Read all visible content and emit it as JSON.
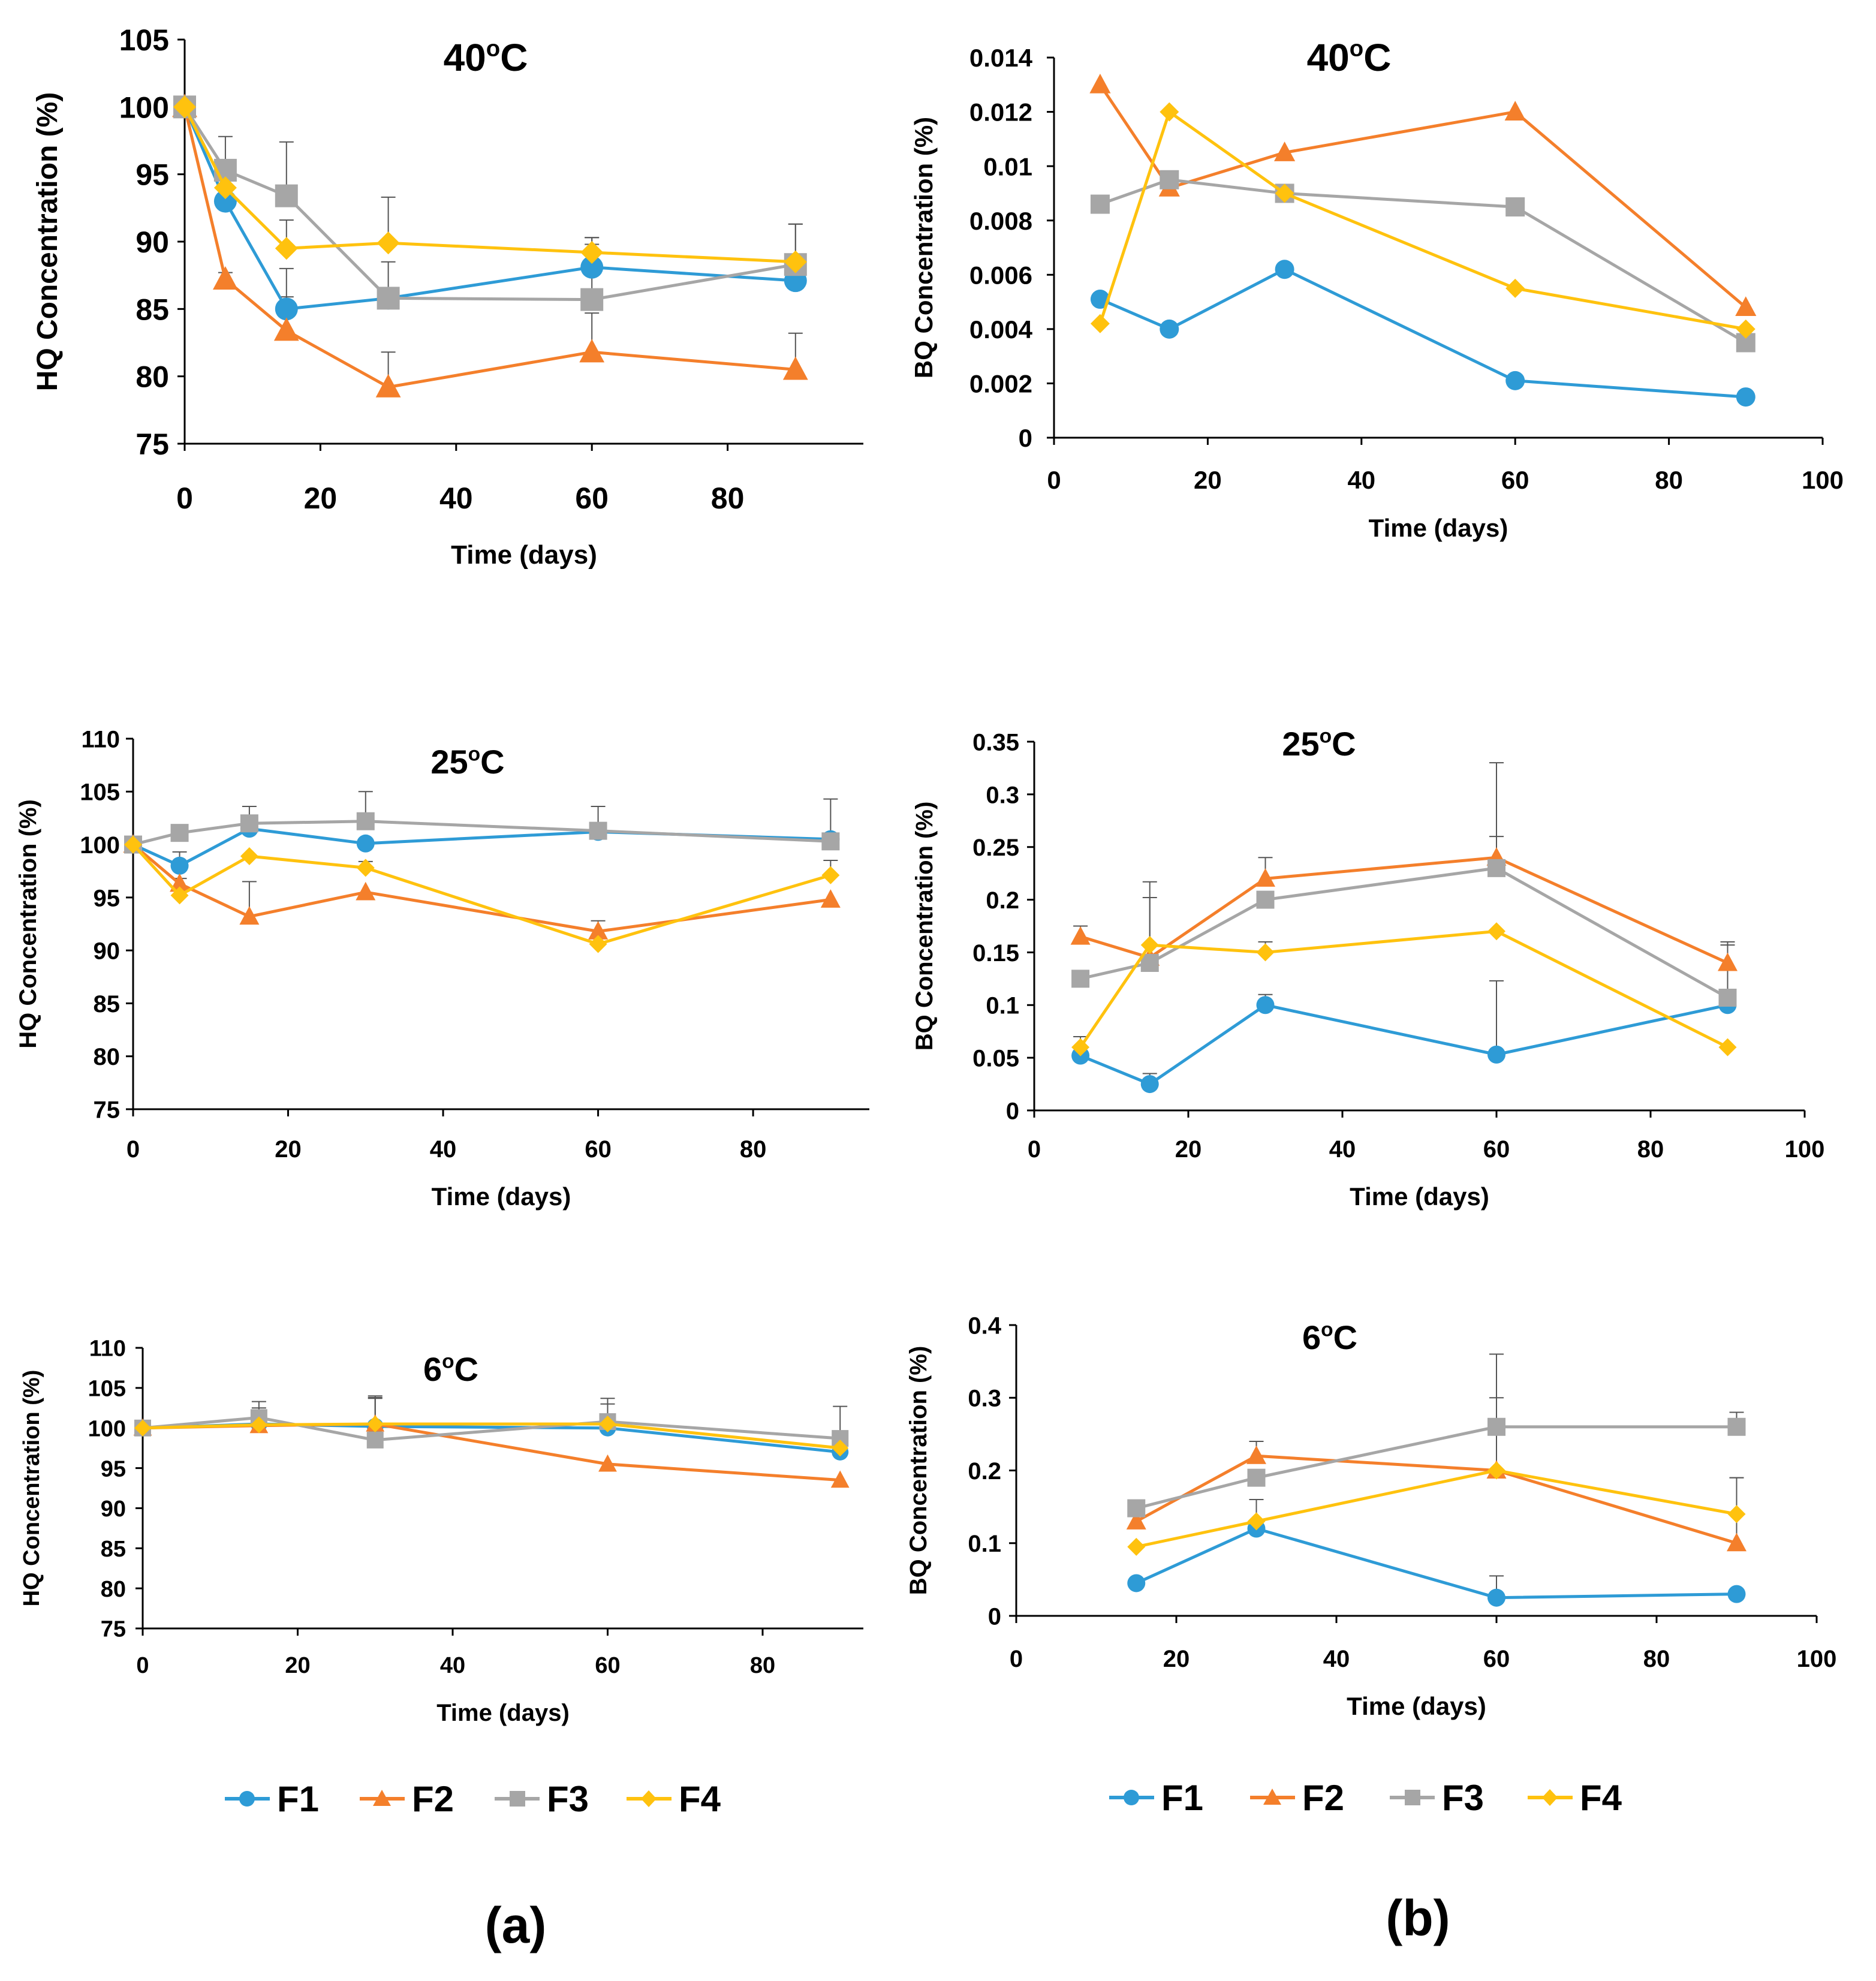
{
  "colors": {
    "F1": "#2e9bd6",
    "F2": "#f47f2b",
    "F3": "#a6a6a6",
    "F4": "#ffc20e"
  },
  "legends": [
    {
      "series": [
        {
          "name": "F1",
          "marker": "circle"
        },
        {
          "name": "F2",
          "marker": "triangle"
        },
        {
          "name": "F3",
          "marker": "square"
        },
        {
          "name": "F4",
          "marker": "diamond"
        }
      ]
    },
    {
      "series": [
        {
          "name": "F1",
          "marker": "circle"
        },
        {
          "name": "F2",
          "marker": "triangle"
        },
        {
          "name": "F3",
          "marker": "square"
        },
        {
          "name": "F4",
          "marker": "diamond"
        }
      ]
    }
  ],
  "panel_labels": [
    "(a)",
    "(b)"
  ],
  "chart_data": [
    {
      "id": "hq40",
      "type": "line",
      "title": "40",
      "title_sup": "o",
      "title_unit": "C",
      "xlabel": "Time (days)",
      "ylabel": "HQ Concentration (%)",
      "xlim": [
        0,
        100
      ],
      "ylim": [
        75,
        105
      ],
      "xticks": [
        0,
        20,
        40,
        60,
        80
      ],
      "xtick_labels": [
        "0",
        "20",
        "40",
        "60",
        "80"
      ],
      "yticks": [
        75,
        80,
        85,
        90,
        95,
        100,
        105
      ],
      "ytick_labels": [
        "75",
        "80",
        "85",
        "90",
        "95",
        "100",
        "105"
      ],
      "series": [
        {
          "name": "F1",
          "x": [
            0,
            6,
            15,
            30,
            60,
            90
          ],
          "y": [
            100,
            93,
            85,
            85.8,
            88.1,
            87.1
          ],
          "err": [
            0,
            0,
            3,
            2.7,
            2.2,
            0
          ]
        },
        {
          "name": "F2",
          "x": [
            0,
            6,
            15,
            30,
            60,
            90
          ],
          "y": [
            100,
            87.2,
            83.4,
            79.2,
            81.8,
            80.5
          ],
          "err": [
            0,
            0.5,
            2.5,
            2.6,
            2.9,
            2.7
          ]
        },
        {
          "name": "F3",
          "x": [
            0,
            6,
            15,
            30,
            60,
            90
          ],
          "y": [
            100,
            95.3,
            93.4,
            85.8,
            85.7,
            88.3
          ],
          "err": [
            0,
            2.5,
            4,
            0,
            4.1,
            3
          ]
        },
        {
          "name": "F4",
          "x": [
            0,
            6,
            15,
            30,
            60,
            90
          ],
          "y": [
            100,
            94,
            89.5,
            89.9,
            89.2,
            88.5
          ],
          "err": [
            0,
            0,
            2.1,
            3.4,
            1.1,
            2.8
          ]
        }
      ]
    },
    {
      "id": "bq40",
      "type": "line",
      "title": "40",
      "title_sup": "o",
      "title_unit": "C",
      "xlabel": "Time (days)",
      "ylabel": "BQ Concentration (%)",
      "xlim": [
        0,
        100
      ],
      "ylim": [
        0,
        0.014
      ],
      "xticks": [
        0,
        20,
        40,
        60,
        80,
        100
      ],
      "xtick_labels": [
        "0",
        "20",
        "40",
        "60",
        "80",
        "100"
      ],
      "yticks": [
        0,
        0.002,
        0.004,
        0.006,
        0.008,
        0.01,
        0.012,
        0.014
      ],
      "ytick_labels": [
        "0",
        "0.002",
        "0.004",
        "0.006",
        "0.008",
        "0.01",
        "0.012",
        "0.014"
      ],
      "series": [
        {
          "name": "F1",
          "x": [
            6,
            15,
            30,
            60,
            90
          ],
          "y": [
            0.0051,
            0.004,
            0.0062,
            0.0021,
            0.0015
          ],
          "err": [
            0,
            0,
            0,
            0,
            0
          ]
        },
        {
          "name": "F2",
          "x": [
            6,
            15,
            30,
            60,
            90
          ],
          "y": [
            0.013,
            0.0092,
            0.0105,
            0.012,
            0.0048
          ],
          "err": [
            0,
            0,
            0,
            0,
            0
          ]
        },
        {
          "name": "F3",
          "x": [
            6,
            15,
            30,
            60,
            90
          ],
          "y": [
            0.0086,
            0.0095,
            0.009,
            0.0085,
            0.0035
          ],
          "err": [
            0,
            0,
            0,
            0,
            0
          ]
        },
        {
          "name": "F4",
          "x": [
            6,
            15,
            30,
            60,
            90
          ],
          "y": [
            0.0042,
            0.012,
            0.009,
            0.0055,
            0.004
          ],
          "err": [
            0,
            0,
            0,
            0,
            0
          ]
        }
      ]
    },
    {
      "id": "hq25",
      "type": "line",
      "title": "25",
      "title_sup": "o",
      "title_unit": "C",
      "xlabel": "Time (days)",
      "ylabel": "HQ Concentration (%)",
      "xlim": [
        0,
        95
      ],
      "ylim": [
        75,
        110
      ],
      "xticks": [
        0,
        20,
        40,
        60,
        80
      ],
      "xtick_labels": [
        "0",
        "20",
        "40",
        "60",
        "80"
      ],
      "yticks": [
        75,
        80,
        85,
        90,
        95,
        100,
        105,
        110
      ],
      "ytick_labels": [
        "75",
        "80",
        "85",
        "90",
        "95",
        "100",
        "105",
        "110"
      ],
      "series": [
        {
          "name": "F1",
          "x": [
            0,
            6,
            15,
            30,
            60,
            90
          ],
          "y": [
            100,
            98,
            101.5,
            100.1,
            101.2,
            100.5
          ],
          "err": [
            0,
            1.3,
            0,
            0,
            0,
            0
          ]
        },
        {
          "name": "F2",
          "x": [
            0,
            6,
            15,
            30,
            60,
            90
          ],
          "y": [
            100,
            96.3,
            93.2,
            95.5,
            91.8,
            94.8
          ],
          "err": [
            0,
            0.5,
            3.3,
            0,
            1,
            0
          ]
        },
        {
          "name": "F3",
          "x": [
            0,
            6,
            15,
            30,
            60,
            90
          ],
          "y": [
            100,
            101.1,
            102,
            102.2,
            101.3,
            100.3
          ],
          "err": [
            0,
            0,
            1.6,
            2.8,
            2.3,
            4
          ]
        },
        {
          "name": "F4",
          "x": [
            0,
            6,
            15,
            30,
            60,
            90
          ],
          "y": [
            100,
            95.2,
            98.9,
            97.8,
            90.6,
            97.1
          ],
          "err": [
            0,
            0,
            0,
            0.6,
            0,
            1.4
          ]
        }
      ]
    },
    {
      "id": "bq25",
      "type": "line",
      "title": "25",
      "title_sup": "o",
      "title_unit": "C",
      "xlabel": "Time (days)",
      "ylabel": "BQ Concentration (%)",
      "xlim": [
        0,
        100
      ],
      "ylim": [
        0,
        0.35
      ],
      "xticks": [
        0,
        20,
        40,
        60,
        80,
        100
      ],
      "xtick_labels": [
        "0",
        "20",
        "40",
        "60",
        "80",
        "100"
      ],
      "yticks": [
        0,
        0.05,
        0.1,
        0.15,
        0.2,
        0.25,
        0.3,
        0.35
      ],
      "ytick_labels": [
        "0",
        "0.05",
        "0.1",
        "0.15",
        "0.2",
        "0.25",
        "0.3",
        "0.35"
      ],
      "series": [
        {
          "name": "F1",
          "x": [
            6,
            15,
            30,
            60,
            90
          ],
          "y": [
            0.052,
            0.025,
            0.1,
            0.053,
            0.1
          ],
          "err": [
            0,
            0.01,
            0.01,
            0.07,
            0
          ]
        },
        {
          "name": "F2",
          "x": [
            6,
            15,
            30,
            60,
            90
          ],
          "y": [
            0.165,
            0.145,
            0.22,
            0.24,
            0.14
          ],
          "err": [
            0.01,
            0,
            0.02,
            0.02,
            0.02
          ]
        },
        {
          "name": "F3",
          "x": [
            6,
            15,
            30,
            60,
            90
          ],
          "y": [
            0.125,
            0.14,
            0.2,
            0.23,
            0.107
          ],
          "err": [
            0,
            0.077,
            0,
            0.1,
            0.05
          ]
        },
        {
          "name": "F4",
          "x": [
            6,
            15,
            30,
            60,
            90
          ],
          "y": [
            0.06,
            0.157,
            0.15,
            0.17,
            0.06
          ],
          "err": [
            0.01,
            0.045,
            0.01,
            0,
            0
          ]
        }
      ]
    },
    {
      "id": "hq6",
      "type": "line",
      "title": "6",
      "title_sup": "o",
      "title_unit": "C",
      "xlabel": "Time (days)",
      "ylabel": "HQ Concentration (%)",
      "xlim": [
        0,
        93
      ],
      "ylim": [
        75,
        110
      ],
      "xticks": [
        0,
        20,
        40,
        60,
        80
      ],
      "xtick_labels": [
        "0",
        "20",
        "40",
        "60",
        "80"
      ],
      "yticks": [
        75,
        80,
        85,
        90,
        95,
        100,
        105,
        110
      ],
      "ytick_labels": [
        "75",
        "80",
        "85",
        "90",
        "95",
        "100",
        "105",
        "110"
      ],
      "series": [
        {
          "name": "F1",
          "x": [
            0,
            15,
            30,
            60,
            90
          ],
          "y": [
            100,
            100.5,
            100.2,
            100,
            97
          ],
          "err": [
            0,
            2,
            3.5,
            3,
            0
          ]
        },
        {
          "name": "F2",
          "x": [
            0,
            15,
            30,
            60,
            90
          ],
          "y": [
            100,
            100.3,
            100.5,
            95.5,
            93.5
          ],
          "err": [
            0,
            0,
            3.5,
            0,
            0
          ]
        },
        {
          "name": "F3",
          "x": [
            0,
            15,
            30,
            60,
            90
          ],
          "y": [
            100,
            101.3,
            98.5,
            100.8,
            98.7
          ],
          "err": [
            0,
            2,
            5.3,
            2.9,
            4
          ]
        },
        {
          "name": "F4",
          "x": [
            0,
            15,
            30,
            60,
            90
          ],
          "y": [
            100,
            100.4,
            100.5,
            100.5,
            97.5
          ],
          "err": [
            0,
            0,
            0,
            0,
            0
          ]
        }
      ]
    },
    {
      "id": "bq6",
      "type": "line",
      "title": "6",
      "title_sup": "o",
      "title_unit": "C",
      "xlabel": "Time (days)",
      "ylabel": "BQ Concentration (%)",
      "xlim": [
        0,
        100
      ],
      "ylim": [
        0,
        0.4
      ],
      "xticks": [
        0,
        20,
        40,
        60,
        80,
        100
      ],
      "xtick_labels": [
        "0",
        "20",
        "40",
        "60",
        "80",
        "100"
      ],
      "yticks": [
        0,
        0.1,
        0.2,
        0.3,
        0.4
      ],
      "ytick_labels": [
        "0",
        "0.1",
        "0.2",
        "0.3",
        "0.4"
      ],
      "series": [
        {
          "name": "F1",
          "x": [
            15,
            30,
            60,
            90
          ],
          "y": [
            0.045,
            0.12,
            0.025,
            0.03
          ],
          "err": [
            0,
            0,
            0.03,
            0
          ]
        },
        {
          "name": "F2",
          "x": [
            15,
            30,
            60,
            90
          ],
          "y": [
            0.13,
            0.22,
            0.2,
            0.1
          ],
          "err": [
            0,
            0.02,
            0,
            0.09
          ]
        },
        {
          "name": "F3",
          "x": [
            15,
            30,
            60,
            90
          ],
          "y": [
            0.148,
            0.19,
            0.26,
            0.26
          ],
          "err": [
            0,
            0,
            0.1,
            0.02
          ]
        },
        {
          "name": "F4",
          "x": [
            15,
            30,
            60,
            90
          ],
          "y": [
            0.095,
            0.13,
            0.2,
            0.14
          ],
          "err": [
            0,
            0.03,
            0.1,
            0.05
          ]
        }
      ]
    }
  ]
}
